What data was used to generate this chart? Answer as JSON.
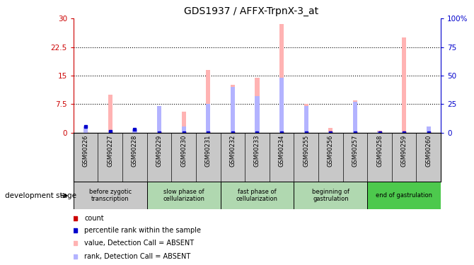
{
  "title": "GDS1937 / AFFX-TrpnX-3_at",
  "samples": [
    "GSM90226",
    "GSM90227",
    "GSM90228",
    "GSM90229",
    "GSM90230",
    "GSM90231",
    "GSM90232",
    "GSM90233",
    "GSM90234",
    "GSM90255",
    "GSM90256",
    "GSM90257",
    "GSM90258",
    "GSM90259",
    "GSM90260"
  ],
  "values_absent": [
    0.3,
    10.0,
    0.3,
    6.5,
    5.5,
    16.5,
    12.5,
    14.5,
    28.5,
    7.5,
    1.2,
    8.5,
    0.5,
    25.0,
    0.3
  ],
  "rank_absent_pct": [
    5,
    1,
    3,
    23,
    5,
    25,
    40,
    32,
    48,
    23,
    1,
    27,
    1,
    1,
    5
  ],
  "count_vals": [
    0,
    0,
    0,
    0,
    0,
    0,
    0,
    0,
    0,
    0,
    0,
    0,
    0,
    0,
    0
  ],
  "percentile_vals_pct": [
    5,
    1,
    3,
    0,
    0,
    0,
    0,
    0,
    0,
    0,
    0,
    0,
    0,
    0,
    0
  ],
  "ylim_left": [
    0,
    30
  ],
  "ylim_right": [
    0,
    100
  ],
  "yticks_left": [
    0,
    7.5,
    15,
    22.5,
    30
  ],
  "yticks_left_labels": [
    "0",
    "7.5",
    "15",
    "22.5",
    "30"
  ],
  "yticks_right": [
    0,
    25,
    50,
    75,
    100
  ],
  "yticks_right_labels": [
    "0",
    "25",
    "50",
    "75",
    "100%"
  ],
  "stage_groups": [
    {
      "label": "before zygotic\ntranscription",
      "start": 0,
      "end": 3,
      "color": "#c8c8c8"
    },
    {
      "label": "slow phase of\ncellularization",
      "start": 3,
      "end": 6,
      "color": "#b0d8b0"
    },
    {
      "label": "fast phase of\ncellularization",
      "start": 6,
      "end": 9,
      "color": "#b0d8b0"
    },
    {
      "label": "beginning of\ngastrulation",
      "start": 9,
      "end": 12,
      "color": "#b0d8b0"
    },
    {
      "label": "end of gastrulation",
      "start": 12,
      "end": 15,
      "color": "#4dc94d"
    }
  ],
  "bar_color_absent": "#ffb3b3",
  "bar_color_rank_absent": "#b3b3ff",
  "dot_color_count": "#cc0000",
  "dot_color_percentile": "#0000cc",
  "left_axis_color": "#cc0000",
  "right_axis_color": "#0000cc",
  "xlabel_area_color": "#c8c8c8",
  "development_stage_label": "development stage"
}
